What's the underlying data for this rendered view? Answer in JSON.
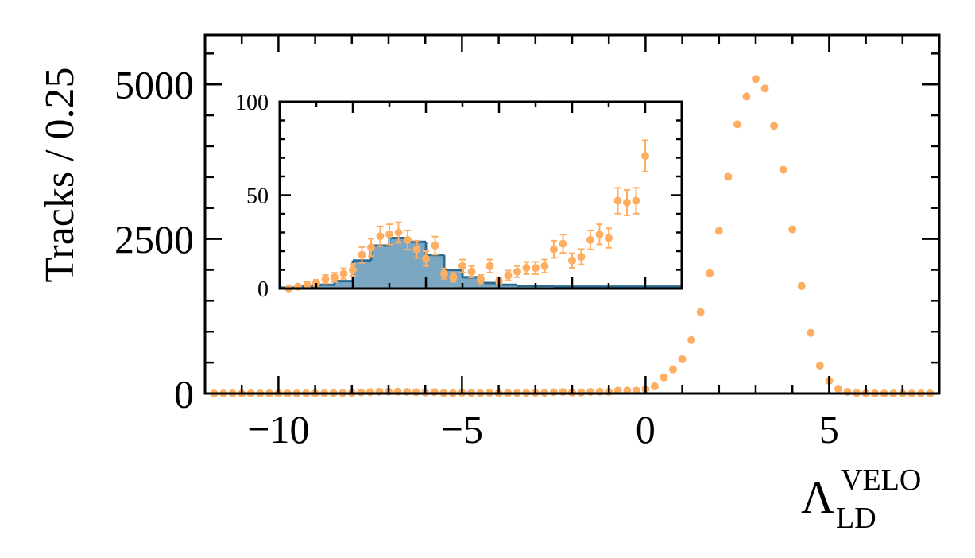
{
  "chart_data": [
    {
      "type": "scatter",
      "ylabel": "Tracks / 0.25",
      "xlabel": {
        "symbol": "Λ",
        "sub": "LD",
        "sup": "VELO"
      },
      "xlim": [
        -12,
        8
      ],
      "ylim": [
        0,
        5800
      ],
      "xticks": [
        {
          "value": -10,
          "label": "−10"
        },
        {
          "value": -5,
          "label": "−5"
        },
        0,
        5
      ],
      "xminorticks": [
        -11,
        -9,
        -8,
        -7,
        -6,
        -4,
        -3,
        -2,
        -1,
        1,
        2,
        3,
        4,
        6,
        7
      ],
      "yticks": [
        0,
        2500,
        5000
      ],
      "yminorticks": [
        500,
        1000,
        1500,
        2000,
        3000,
        3500,
        4000,
        4500,
        5500
      ],
      "color": "#fdae61",
      "x": [
        -11.75,
        -11.5,
        -11.25,
        -11,
        -10.75,
        -10.5,
        -10.25,
        -10,
        -9.75,
        -9.5,
        -9.25,
        -9,
        -8.75,
        -8.5,
        -8.25,
        -8,
        -7.75,
        -7.5,
        -7.25,
        -7,
        -6.75,
        -6.5,
        -6.25,
        -6,
        -5.75,
        -5.5,
        -5.25,
        -5,
        -4.75,
        -4.5,
        -4.25,
        -4,
        -3.75,
        -3.5,
        -3.25,
        -3,
        -2.75,
        -2.5,
        -2.25,
        -2,
        -1.75,
        -1.5,
        -1.25,
        -1,
        -0.75,
        -0.5,
        -0.25,
        0,
        0.25,
        0.5,
        0.75,
        1,
        1.25,
        1.5,
        1.75,
        2,
        2.25,
        2.5,
        2.75,
        3,
        3.25,
        3.5,
        3.75,
        4,
        4.25,
        4.5,
        4.75,
        5,
        5.25,
        5.5,
        5.75,
        6,
        6.25,
        6.5,
        6.75,
        7,
        7.25,
        7.5,
        7.75
      ],
      "values": [
        0,
        0,
        1,
        0,
        1,
        0,
        1,
        1,
        0,
        1,
        2,
        3,
        5,
        6,
        8,
        10,
        18,
        22,
        28,
        29,
        30,
        26,
        21,
        16,
        23,
        8,
        6,
        12,
        9,
        5,
        12,
        4,
        7,
        9,
        11,
        11,
        12,
        21,
        24,
        15,
        17,
        26,
        29,
        27,
        47,
        46,
        47,
        71,
        115,
        260,
        390,
        555,
        865,
        1315,
        1945,
        2630,
        3505,
        4355,
        4805,
        5090,
        4935,
        4330,
        3620,
        2655,
        1740,
        980,
        450,
        205,
        75,
        25,
        8,
        3,
        1,
        0,
        0,
        0,
        0,
        0,
        0
      ]
    },
    {
      "type": "histogram",
      "xlim": [
        -10,
        1
      ],
      "ylim": [
        0,
        100
      ],
      "xticks": [
        -8,
        -6,
        -4,
        -2,
        0
      ],
      "xminorticks": [
        -9,
        -7,
        -5,
        -3,
        -1
      ],
      "yticks": [
        0,
        50,
        100
      ],
      "yminorticks": [
        10,
        20,
        30,
        40,
        60,
        70,
        80,
        90
      ],
      "color": "#7ba7c2",
      "edgecolor": "#2c6b8f",
      "bins": [
        -10,
        -9.5,
        -9,
        -8.5,
        -8,
        -7.5,
        -7,
        -6.5,
        -6,
        -5.5,
        -5,
        -4.5,
        -4,
        -3.5,
        -3,
        -2.5,
        -2,
        -1.5,
        -1,
        -0.5,
        0,
        0.5,
        1
      ],
      "counts": [
        0.5,
        1,
        2,
        4,
        15,
        23,
        27,
        25,
        18,
        10,
        6,
        3,
        2,
        1.5,
        1.5,
        1,
        1,
        1,
        1,
        1,
        1,
        1
      ],
      "points": {
        "color": "#fdae61",
        "x": [
          -9.75,
          -9.5,
          -9.25,
          -9,
          -8.75,
          -8.5,
          -8.25,
          -8,
          -7.75,
          -7.5,
          -7.25,
          -7,
          -6.75,
          -6.5,
          -6.25,
          -6,
          -5.75,
          -5.5,
          -5.25,
          -5,
          -4.75,
          -4.5,
          -4.25,
          -4,
          -3.75,
          -3.5,
          -3.25,
          -3,
          -2.75,
          -2.5,
          -2.25,
          -2,
          -1.75,
          -1.5,
          -1.25,
          -1,
          -0.75,
          -0.5,
          -0.25,
          0
        ],
        "values": [
          0,
          1,
          2,
          3,
          5,
          6,
          8,
          10,
          18,
          22,
          28,
          29,
          30,
          26,
          21,
          16,
          23,
          8,
          6,
          12,
          9,
          5,
          12,
          4,
          7,
          9,
          11,
          11,
          12,
          21,
          24,
          15,
          17,
          26,
          29,
          27,
          47,
          46,
          47,
          71
        ],
        "errors": [
          0,
          1,
          1.4,
          1.7,
          2.2,
          2.4,
          2.8,
          3.2,
          4.2,
          4.7,
          5.3,
          5.4,
          5.5,
          5.1,
          4.6,
          4,
          4.8,
          2.8,
          2.4,
          3.5,
          3,
          2.2,
          3.5,
          2,
          2.6,
          3,
          3.3,
          3.3,
          3.5,
          4.6,
          4.9,
          3.9,
          4.1,
          5.1,
          5.4,
          5.2,
          6.9,
          6.8,
          6.9,
          8.4
        ]
      }
    }
  ]
}
